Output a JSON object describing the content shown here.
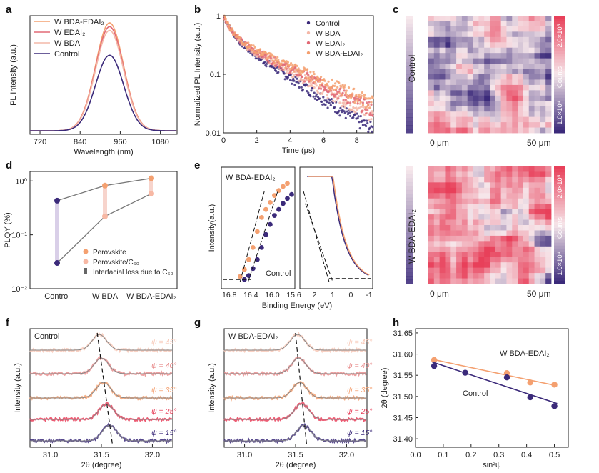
{
  "colors": {
    "control": "#3b2a7a",
    "bda": "#f4b8a8",
    "edai": "#e26a76",
    "bdaedai": "#f4a070",
    "map_high": "#e8405a",
    "map_low": "#3b2a7a"
  },
  "panel_letters": [
    "a",
    "b",
    "c",
    "d",
    "e",
    "f",
    "g",
    "h"
  ],
  "chart_data": [
    {
      "id": "a",
      "type": "line",
      "xlabel": "Wavelength (nm)",
      "ylabel": "PL Intensity (a.u.)",
      "xlim": [
        690,
        1130
      ],
      "xticks": [
        720,
        840,
        960,
        1080
      ],
      "legend": [
        "W BDA-EDAI2",
        "W EDAI2",
        "W BDA",
        "Control"
      ],
      "legend_display": [
        "W BDA-EDAI₂",
        "W EDAI₂",
        "W BDA",
        "Control"
      ],
      "series": [
        {
          "name": "W BDA-EDAI2",
          "peak": 1.0,
          "center": 928,
          "sigma": 42
        },
        {
          "name": "W EDAI2",
          "peak": 0.965,
          "center": 928,
          "sigma": 42
        },
        {
          "name": "W BDA",
          "peak": 0.93,
          "center": 928,
          "sigma": 42
        },
        {
          "name": "Control",
          "peak": 0.7,
          "center": 928,
          "sigma": 42
        }
      ]
    },
    {
      "id": "b",
      "type": "scatter",
      "xlabel": "Time (μs)",
      "ylabel": "Normalized PL Intensity (a.u.)",
      "xlim": [
        0,
        9
      ],
      "ylim": [
        0.01,
        1
      ],
      "yscale": "log",
      "xticks": [
        "0",
        "2",
        "4",
        "6",
        "8"
      ],
      "yticks": [
        "0.01",
        "0.1",
        "1"
      ],
      "legend": [
        "Control",
        "W BDA",
        "W EDAI2",
        "W BDA-EDAI2"
      ],
      "legend_display": [
        "Control",
        "W BDA",
        "W EDAI₂",
        "W BDA-EDAI₂"
      ],
      "series": [
        {
          "name": "Control",
          "end_value": 0.013
        },
        {
          "name": "W BDA",
          "end_value": 0.025
        },
        {
          "name": "W EDAI2",
          "end_value": 0.033
        },
        {
          "name": "W BDA-EDAI2",
          "end_value": 0.045
        }
      ]
    },
    {
      "id": "c",
      "type": "heatmap",
      "maps": [
        "Control",
        "W BDA-EDAI2"
      ],
      "maps_display": [
        "Control",
        "W BDA-EDAI₂"
      ],
      "x_labels": [
        "0 μm",
        "50 μm"
      ],
      "colorbar_label": "Counts",
      "colorbar_ticks": [
        "1.0×10⁴",
        "2.0×10⁵"
      ]
    },
    {
      "id": "d",
      "type": "scatter",
      "ylabel": "PLQY (%)",
      "yscale": "log",
      "ylim": [
        0.01,
        1.5
      ],
      "categories": [
        "Control",
        "W BDA",
        "W BDA-EDAI2"
      ],
      "categories_display": [
        "Control",
        "W BDA",
        "W BDA-EDAI₂"
      ],
      "yticks": [
        "10⁻²",
        "10⁻¹",
        "10⁰"
      ],
      "series": [
        {
          "name": "Perovskite",
          "values": [
            0.43,
            0.82,
            1.12
          ]
        },
        {
          "name": "Perovskite/C60",
          "values": [
            0.03,
            0.22,
            0.58
          ]
        }
      ],
      "legend": [
        "Perovskite",
        "Perovskite/C60",
        "Interfacial loss due to C60"
      ],
      "legend_display": [
        "Perovskite",
        "Perovskite/C₆₀",
        "Interfacial loss due to C₆₀"
      ]
    },
    {
      "id": "e",
      "type": "scatter",
      "xlabel": "Binding Energy (eV)",
      "ylabel": "Intensity(a.u.)",
      "left_xticks": [
        "16.8",
        "16.4",
        "16.0",
        "15.6"
      ],
      "right_xticks": [
        "2",
        "1",
        "0",
        "-1"
      ],
      "annotations": [
        "W BDA-EDAI2",
        "Control"
      ],
      "annotations_display": [
        "W BDA-EDAI₂",
        "Control"
      ],
      "cutoff_control_points": [
        16.52,
        16.44,
        16.36,
        16.28,
        16.2,
        16.12,
        16.04,
        15.96,
        15.88,
        15.8,
        15.72,
        15.64
      ],
      "cutoff_control_values": [
        0.02,
        0.06,
        0.13,
        0.22,
        0.34,
        0.47,
        0.57,
        0.66,
        0.72,
        0.78,
        0.83,
        0.87
      ],
      "cutoff_edai_values": [
        0.05,
        0.12,
        0.22,
        0.34,
        0.5,
        0.64,
        0.72,
        0.79,
        0.86,
        0.91,
        0.95,
        0.98
      ]
    },
    {
      "id": "f",
      "type": "line",
      "xlabel": "2θ (degree)",
      "ylabel": "Intensity (a.u.)",
      "xlim": [
        30.8,
        32.2
      ],
      "xticks": [
        "31.0",
        "31.5",
        "32.0"
      ],
      "annotation": "Control",
      "series": [
        {
          "name": "ψ = 45°",
          "peak": 31.48
        },
        {
          "name": "ψ = 40°",
          "peak": 31.5
        },
        {
          "name": "ψ = 35°",
          "peak": 31.52
        },
        {
          "name": "ψ = 25°",
          "peak": 31.55
        },
        {
          "name": "ψ = 15°",
          "peak": 31.58
        }
      ]
    },
    {
      "id": "g",
      "type": "line",
      "xlabel": "2θ (degree)",
      "ylabel": "Intensity (a.u.)",
      "xlim": [
        30.8,
        32.2
      ],
      "xticks": [
        "31.0",
        "31.5",
        "32.0"
      ],
      "annotation": "W BDA-EDAI2",
      "annotation_display": "W BDA-EDAI₂",
      "series": [
        {
          "name": "ψ = 45°",
          "peak": 31.52
        },
        {
          "name": "ψ = 40°",
          "peak": 31.53
        },
        {
          "name": "ψ = 35°",
          "peak": 31.54
        },
        {
          "name": "ψ = 25°",
          "peak": 31.56
        },
        {
          "name": "ψ = 15°",
          "peak": 31.58
        }
      ]
    },
    {
      "id": "h",
      "type": "scatter",
      "xlabel": "sin²ψ",
      "ylabel": "2θ (degree)",
      "xlim": [
        0.0,
        0.55
      ],
      "ylim": [
        31.38,
        31.66
      ],
      "xticks": [
        "0.0",
        "0.1",
        "0.2",
        "0.3",
        "0.4",
        "0.5"
      ],
      "yticks": [
        "31.40",
        "31.45",
        "31.50",
        "31.55",
        "31.60",
        "31.65"
      ],
      "series": [
        {
          "name": "W BDA-EDAI2",
          "display": "W BDA-EDAI₂",
          "x": [
            0.067,
            0.329,
            0.413,
            0.5
          ],
          "y": [
            31.586,
            31.555,
            31.533,
            31.528
          ]
        },
        {
          "name": "Control",
          "display": "Control",
          "x": [
            0.067,
            0.179,
            0.329,
            0.413,
            0.5
          ],
          "y": [
            31.572,
            31.556,
            31.545,
            31.498,
            31.477
          ]
        }
      ]
    }
  ]
}
